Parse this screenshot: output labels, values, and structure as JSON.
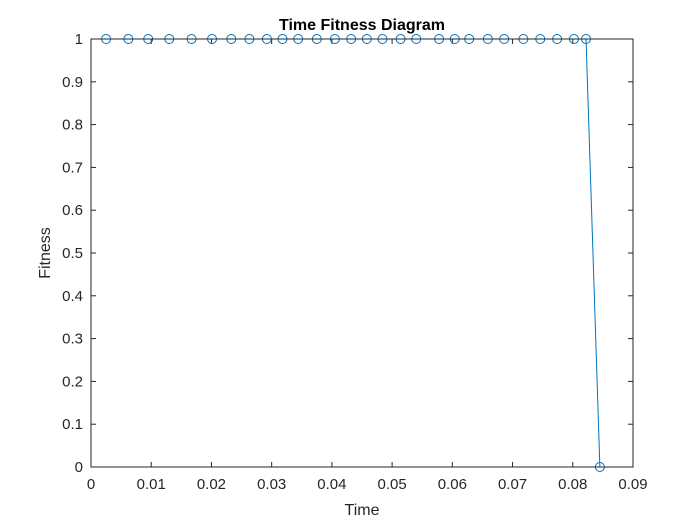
{
  "chart_data": {
    "type": "line",
    "title": "Time Fitness Diagram",
    "xlabel": "Time",
    "ylabel": "Fitness",
    "xlim": [
      0,
      0.09
    ],
    "ylim": [
      0,
      1
    ],
    "xticks": [
      0,
      0.01,
      0.02,
      0.03,
      0.04,
      0.05,
      0.06,
      0.07,
      0.08,
      0.09
    ],
    "xtick_labels": [
      "0",
      "0.01",
      "0.02",
      "0.03",
      "0.04",
      "0.05",
      "0.06",
      "0.07",
      "0.08",
      "0.09"
    ],
    "yticks": [
      0,
      0.1,
      0.2,
      0.3,
      0.4,
      0.5,
      0.6,
      0.7,
      0.8,
      0.9,
      1
    ],
    "ytick_labels": [
      "0",
      "0.1",
      "0.2",
      "0.3",
      "0.4",
      "0.5",
      "0.6",
      "0.7",
      "0.8",
      "0.9",
      "1"
    ],
    "grid": false,
    "marker": "circle",
    "series_color": "#0072BD",
    "series": [
      {
        "x": [
          0.0025,
          0.0062,
          0.0095,
          0.013,
          0.0167,
          0.0201,
          0.0233,
          0.0263,
          0.0292,
          0.0318,
          0.0344,
          0.0375,
          0.0405,
          0.0432,
          0.0458,
          0.0484,
          0.0514,
          0.054,
          0.0578,
          0.0604,
          0.0628,
          0.0659,
          0.0686,
          0.0718,
          0.0746,
          0.0774,
          0.0802,
          0.0822,
          0.0845
        ],
        "y": [
          1,
          1,
          1,
          1,
          1,
          1,
          1,
          1,
          1,
          1,
          1,
          1,
          1,
          1,
          1,
          1,
          1,
          1,
          1,
          1,
          1,
          1,
          1,
          1,
          1,
          1,
          1,
          1,
          0
        ]
      }
    ]
  }
}
